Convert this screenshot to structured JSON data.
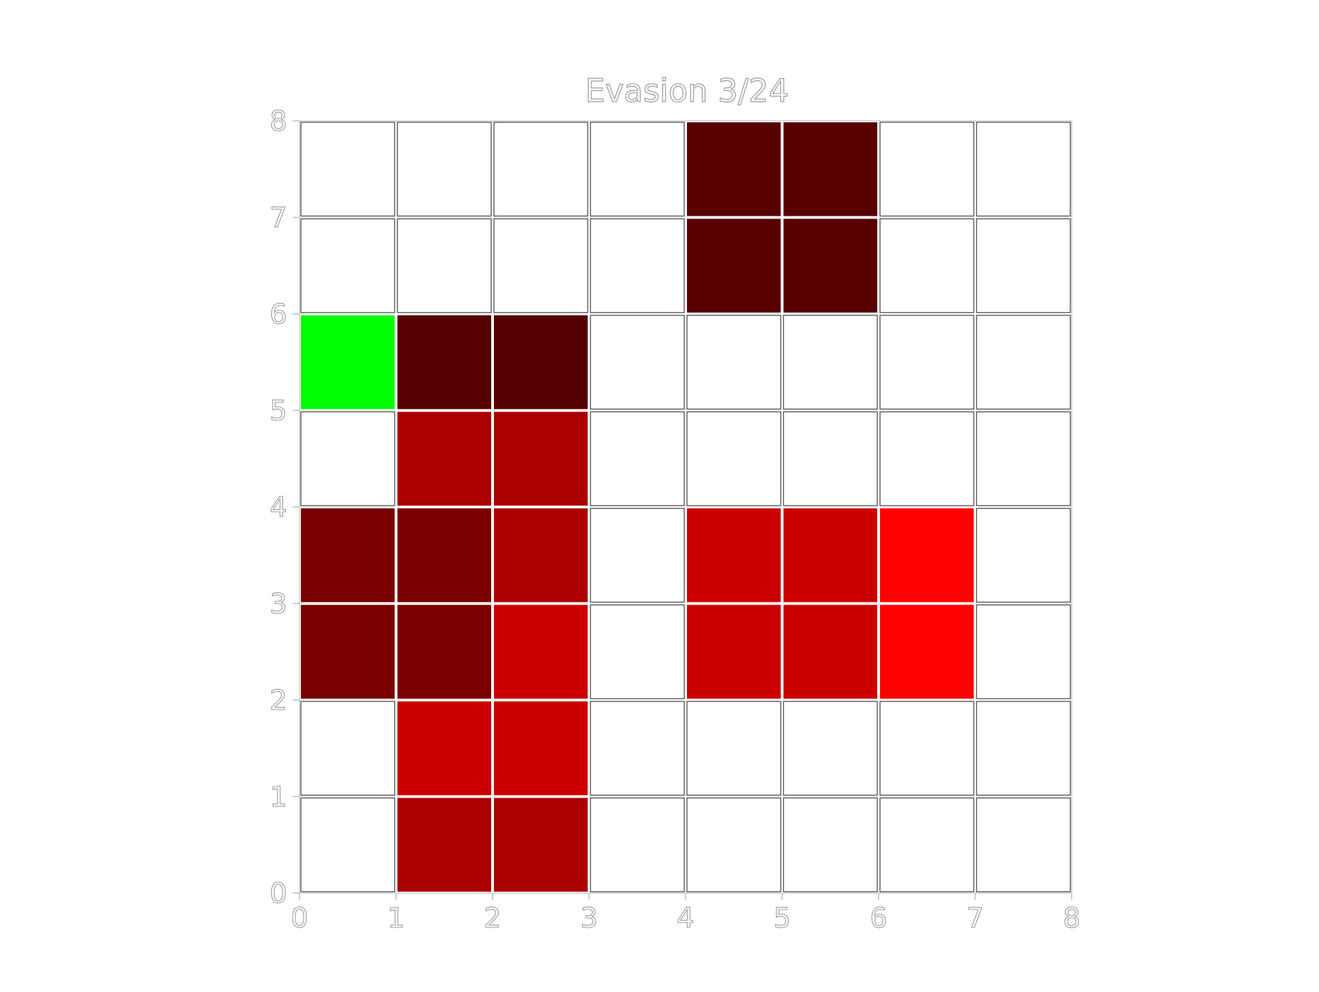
{
  "title": "Evasion 3/24",
  "grid": {
    "cols": 8,
    "rows": 8,
    "xlim": [
      0,
      8
    ],
    "ylim": [
      0,
      8
    ],
    "x_ticks": [
      "0",
      "1",
      "2",
      "3",
      "4",
      "5",
      "6",
      "7",
      "8"
    ],
    "y_ticks": [
      "0",
      "1",
      "2",
      "3",
      "4",
      "5",
      "6",
      "7",
      "8"
    ],
    "empty_color": "#ffffff",
    "cells": [
      {
        "x": 4,
        "y": 7,
        "color": "#580000"
      },
      {
        "x": 5,
        "y": 7,
        "color": "#580000"
      },
      {
        "x": 4,
        "y": 6,
        "color": "#580000"
      },
      {
        "x": 5,
        "y": 6,
        "color": "#580000"
      },
      {
        "x": 0,
        "y": 5,
        "color": "#00ff00"
      },
      {
        "x": 1,
        "y": 5,
        "color": "#550000"
      },
      {
        "x": 2,
        "y": 5,
        "color": "#550000"
      },
      {
        "x": 1,
        "y": 4,
        "color": "#aa0000"
      },
      {
        "x": 2,
        "y": 4,
        "color": "#aa0000"
      },
      {
        "x": 0,
        "y": 3,
        "color": "#7a0000"
      },
      {
        "x": 1,
        "y": 3,
        "color": "#7a0000"
      },
      {
        "x": 2,
        "y": 3,
        "color": "#aa0000"
      },
      {
        "x": 4,
        "y": 3,
        "color": "#cc0000"
      },
      {
        "x": 5,
        "y": 3,
        "color": "#cc0000"
      },
      {
        "x": 6,
        "y": 3,
        "color": "#ff0000"
      },
      {
        "x": 0,
        "y": 2,
        "color": "#7a0000"
      },
      {
        "x": 1,
        "y": 2,
        "color": "#7a0000"
      },
      {
        "x": 2,
        "y": 2,
        "color": "#cc0000"
      },
      {
        "x": 4,
        "y": 2,
        "color": "#cc0000"
      },
      {
        "x": 5,
        "y": 2,
        "color": "#cc0000"
      },
      {
        "x": 6,
        "y": 2,
        "color": "#ff0000"
      },
      {
        "x": 1,
        "y": 1,
        "color": "#cc0000"
      },
      {
        "x": 2,
        "y": 1,
        "color": "#cc0000"
      },
      {
        "x": 1,
        "y": 0,
        "color": "#aa0000"
      },
      {
        "x": 2,
        "y": 0,
        "color": "#aa0000"
      }
    ]
  }
}
